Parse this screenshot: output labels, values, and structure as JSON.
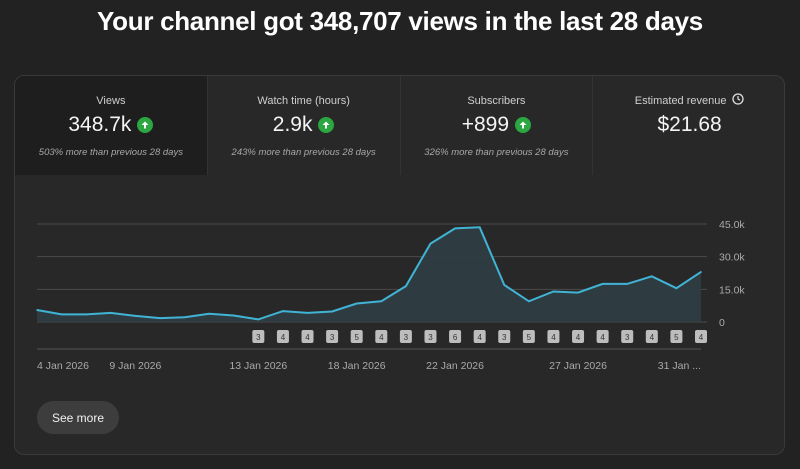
{
  "headline": "Your channel got 348,707 views in the last 28 days",
  "colors": {
    "background": "#222222",
    "card": "#282828",
    "line": "#41b4d6",
    "up_badge": "#2ba640",
    "marker": "#bdbdbd"
  },
  "metrics": [
    {
      "label": "Views",
      "value": "348.7k",
      "compare": "503% more than previous 28 days",
      "icon": "arrow-up-icon"
    },
    {
      "label": "Watch time (hours)",
      "value": "2.9k",
      "compare": "243% more than previous 28 days",
      "icon": "arrow-up-icon"
    },
    {
      "label": "Subscribers",
      "value": "+899",
      "compare": "326% more than previous 28 days",
      "icon": "arrow-up-icon"
    },
    {
      "label": "Estimated revenue",
      "value": "$21.68",
      "icon": "clock-icon"
    }
  ],
  "chart_data": {
    "type": "area",
    "series": [
      {
        "values": [
          5500,
          3500,
          3500,
          4200,
          2800,
          1800,
          2200,
          3800,
          3000,
          1200,
          5000,
          4200,
          4800,
          8500,
          9500,
          16500,
          36000,
          43000,
          43500,
          17000,
          9500,
          14000,
          13500,
          17500,
          17500,
          21000,
          15500,
          23000
        ]
      }
    ],
    "x_tick_labels": [
      "4 Jan 2026",
      "9 Jan 2026",
      "13 Jan 2026",
      "18 Jan 2026",
      "22 Jan 2026",
      "27 Jan 2026",
      "31 Jan ..."
    ],
    "x_tick_index": [
      0,
      4,
      9,
      13,
      17,
      22,
      26
    ],
    "y_ticks": [
      "0",
      "15.0k",
      "30.0k",
      "45.0k"
    ],
    "y_tick_values": [
      0,
      15000,
      30000,
      45000
    ],
    "ylim": [
      0,
      45000
    ],
    "grid": true,
    "upload_markers": [
      "3",
      "4",
      "4",
      "3",
      "5",
      "4",
      "3",
      "3",
      "6",
      "4",
      "3",
      "5",
      "4",
      "4",
      "4",
      "3",
      "4",
      "5",
      "4"
    ],
    "upload_marker_start_index": 9
  },
  "see_more_label": "See more"
}
